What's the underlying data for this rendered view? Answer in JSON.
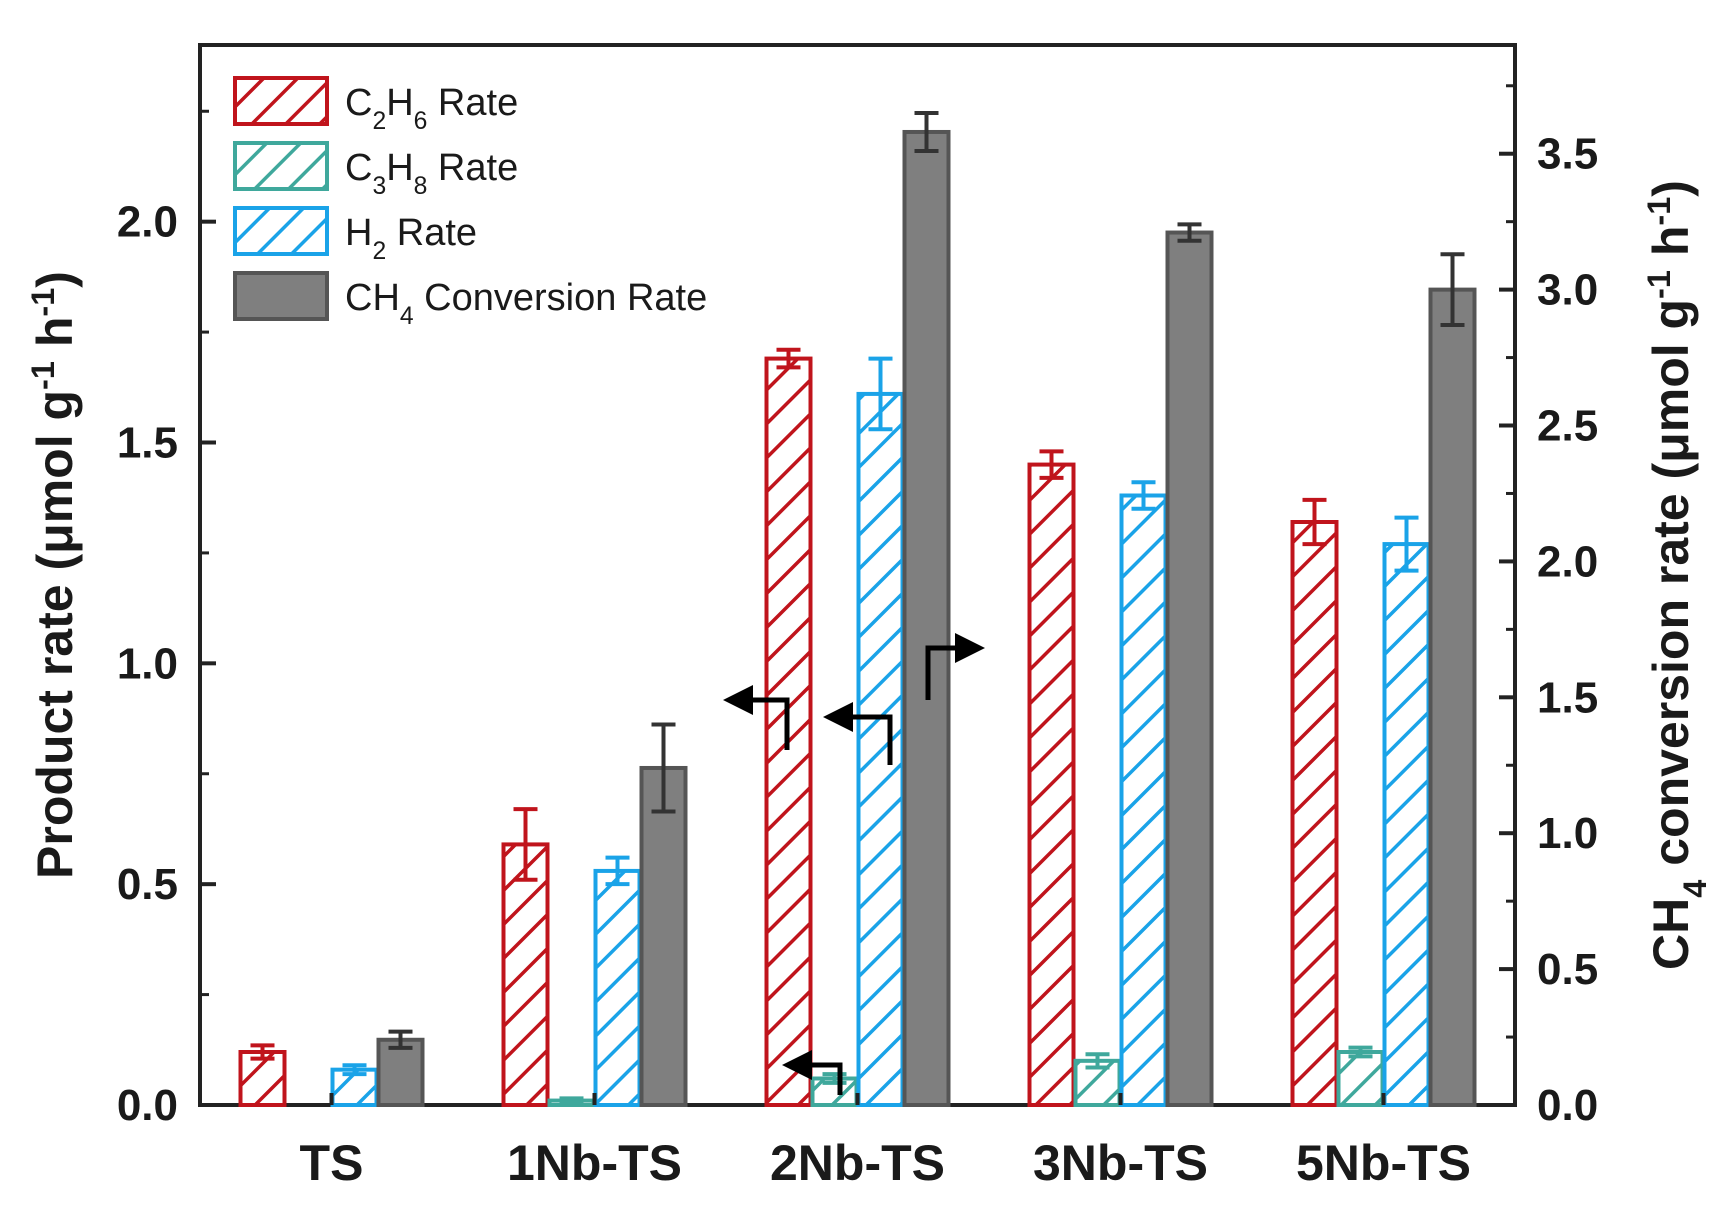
{
  "chart_data": {
    "type": "bar",
    "categories": [
      "TS",
      "1Nb-TS",
      "2Nb-TS",
      "3Nb-TS",
      "5Nb-TS"
    ],
    "left_axis": {
      "label": "Product rate (μmol g⁻¹ h⁻¹)",
      "label_parts": [
        "Product rate (μmol g",
        "-1",
        " h",
        "-1",
        ")"
      ],
      "ylim": [
        0,
        2.4
      ],
      "ticks": [
        "0.0",
        "0.5",
        "1.0",
        "1.5",
        "2.0"
      ],
      "tick_values": [
        0,
        0.5,
        1.0,
        1.5,
        2.0
      ]
    },
    "right_axis": {
      "label": "CH₄ conversion rate (μmol g⁻¹ h⁻¹)",
      "label_parts": [
        "CH",
        "4",
        " conversion rate (μmol g",
        "-1",
        " h",
        "-1",
        ")"
      ],
      "ylim": [
        0,
        3.9
      ],
      "ticks": [
        "0.0",
        "0.5",
        "1.0",
        "1.5",
        "2.0",
        "2.5",
        "3.0",
        "3.5"
      ],
      "tick_values": [
        0,
        0.5,
        1.0,
        1.5,
        2.0,
        2.5,
        3.0,
        3.5
      ]
    },
    "series": [
      {
        "name": "C2H6 Rate",
        "legend_parts": [
          "C",
          "2",
          "H",
          "6",
          " Rate"
        ],
        "axis": "left",
        "pattern": "hatched",
        "color": "#c0141c",
        "values": [
          0.12,
          0.59,
          1.69,
          1.45,
          1.32
        ],
        "errors": [
          0.015,
          0.08,
          0.02,
          0.03,
          0.05
        ]
      },
      {
        "name": "C3H8 Rate",
        "legend_parts": [
          "C",
          "3",
          "H",
          "8",
          " Rate"
        ],
        "axis": "left",
        "pattern": "hatched",
        "color": "#3fa89c",
        "values": [
          0.0,
          0.01,
          0.06,
          0.1,
          0.12
        ],
        "errors": [
          0.0,
          0.005,
          0.01,
          0.015,
          0.01
        ]
      },
      {
        "name": "H2 Rate",
        "legend_parts": [
          "H",
          "2",
          " Rate"
        ],
        "axis": "left",
        "pattern": "hatched",
        "color": "#1aa3e8",
        "values": [
          0.08,
          0.53,
          1.61,
          1.38,
          1.27
        ],
        "errors": [
          0.01,
          0.03,
          0.08,
          0.03,
          0.06
        ]
      },
      {
        "name": "CH4 Conversion Rate",
        "legend_parts": [
          "CH",
          "4",
          " Conversion Rate"
        ],
        "axis": "right",
        "pattern": "solid",
        "color": "#7f7f7f",
        "values": [
          0.24,
          1.24,
          3.58,
          3.21,
          3.0
        ],
        "errors": [
          0.03,
          0.16,
          0.07,
          0.03,
          0.13
        ]
      }
    ],
    "legend_position": "top-left",
    "annotations": [
      "arrow pointing to left axis (C2H6)",
      "arrow pointing to left axis (H2)",
      "arrow pointing to left axis (C3H8)",
      "arrow pointing to right axis (CH4)"
    ]
  }
}
